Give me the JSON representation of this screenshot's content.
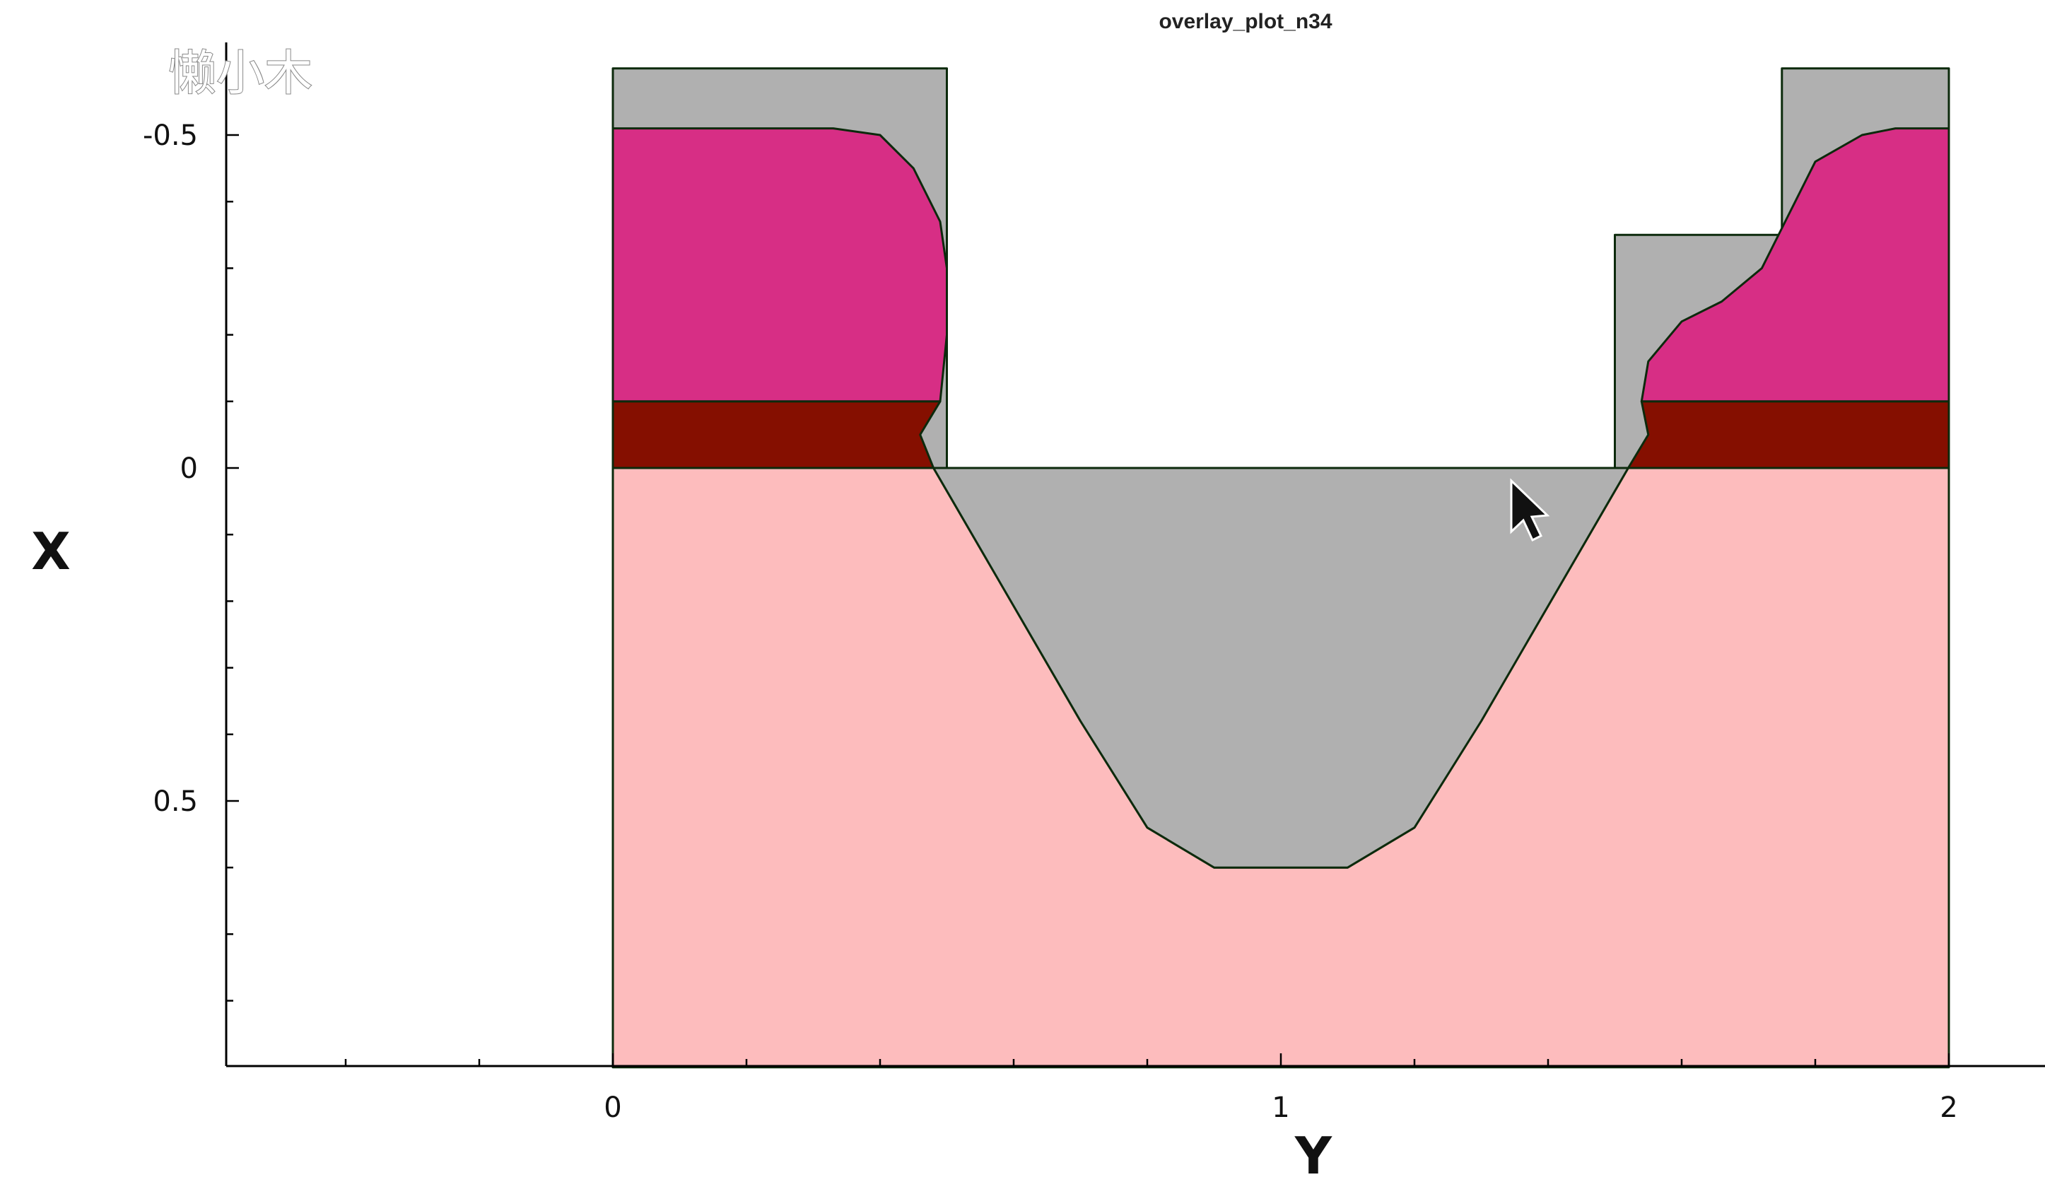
{
  "title": "overlay_plot_n34",
  "watermark": "懒小木",
  "chart_data": {
    "type": "area",
    "title": "overlay_plot_n34",
    "xlabel": "Y",
    "ylabel": "X",
    "xlim": [
      -0.58,
      2.14
    ],
    "ylim": [
      0.9,
      -0.6
    ],
    "y_inverted": true,
    "grid": false,
    "xticks": [
      {
        "value": 0,
        "label": "0"
      },
      {
        "value": 1,
        "label": "1"
      },
      {
        "value": 2,
        "label": "2"
      }
    ],
    "yticks": [
      {
        "value": -0.5,
        "label": "-0.5"
      },
      {
        "value": 0,
        "label": "0"
      },
      {
        "value": 0.5,
        "label": "0.5"
      }
    ],
    "x_minor_step": 0.2,
    "y_minor_step": 0.1,
    "regions": [
      {
        "material": "substrate",
        "color": "#fdbcbd",
        "points": [
          [
            0,
            0
          ],
          [
            0.48,
            0
          ],
          [
            0.7,
            0.38
          ],
          [
            0.8,
            0.54
          ],
          [
            0.9,
            0.6
          ],
          [
            1.1,
            0.6
          ],
          [
            1.2,
            0.54
          ],
          [
            1.3,
            0.38
          ],
          [
            1.52,
            0
          ],
          [
            2,
            0
          ],
          [
            2,
            0.9
          ],
          [
            0,
            0.9
          ]
        ]
      },
      {
        "material": "trench-fill",
        "color": "#b0b0b0",
        "points": [
          [
            0.48,
            0
          ],
          [
            1.52,
            0
          ],
          [
            1.3,
            0.38
          ],
          [
            1.2,
            0.54
          ],
          [
            1.1,
            0.6
          ],
          [
            0.9,
            0.6
          ],
          [
            0.8,
            0.54
          ],
          [
            0.7,
            0.38
          ]
        ]
      },
      {
        "material": "mask-left",
        "color": "#b0b0b0",
        "points": [
          [
            0,
            -0.6
          ],
          [
            0.5,
            -0.6
          ],
          [
            0.5,
            0
          ],
          [
            0,
            0
          ]
        ]
      },
      {
        "material": "mask-right-low",
        "color": "#b0b0b0",
        "points": [
          [
            1.5,
            -0.35
          ],
          [
            1.75,
            -0.35
          ],
          [
            1.75,
            0
          ],
          [
            1.5,
            0
          ]
        ]
      },
      {
        "material": "mask-right-high",
        "color": "#b0b0b0",
        "points": [
          [
            1.75,
            -0.6
          ],
          [
            2,
            -0.6
          ],
          [
            2,
            0
          ],
          [
            1.75,
            0
          ]
        ]
      },
      {
        "material": "pad-left",
        "color": "#850f00",
        "points": [
          [
            0,
            -0.1
          ],
          [
            0.49,
            -0.1
          ],
          [
            0.46,
            -0.05
          ],
          [
            0.48,
            0
          ],
          [
            0,
            0
          ]
        ]
      },
      {
        "material": "pad-right",
        "color": "#850f00",
        "points": [
          [
            1.54,
            -0.1
          ],
          [
            2,
            -0.1
          ],
          [
            2,
            0
          ],
          [
            1.52,
            0
          ],
          [
            1.55,
            -0.05
          ]
        ]
      },
      {
        "material": "resist-left",
        "color": "#d72e85",
        "points": [
          [
            0,
            -0.51
          ],
          [
            0.33,
            -0.51
          ],
          [
            0.4,
            -0.5
          ],
          [
            0.45,
            -0.45
          ],
          [
            0.49,
            -0.37
          ],
          [
            0.5,
            -0.3
          ],
          [
            0.5,
            -0.2
          ],
          [
            0.49,
            -0.1
          ],
          [
            0,
            -0.1
          ]
        ]
      },
      {
        "material": "resist-right",
        "color": "#d72e85",
        "points": [
          [
            1.54,
            -0.1
          ],
          [
            1.55,
            -0.16
          ],
          [
            1.6,
            -0.22
          ],
          [
            1.66,
            -0.25
          ],
          [
            1.72,
            -0.3
          ],
          [
            1.76,
            -0.38
          ],
          [
            1.8,
            -0.46
          ],
          [
            1.87,
            -0.5
          ],
          [
            1.92,
            -0.51
          ],
          [
            2,
            -0.51
          ],
          [
            2,
            -0.1
          ]
        ]
      }
    ]
  }
}
